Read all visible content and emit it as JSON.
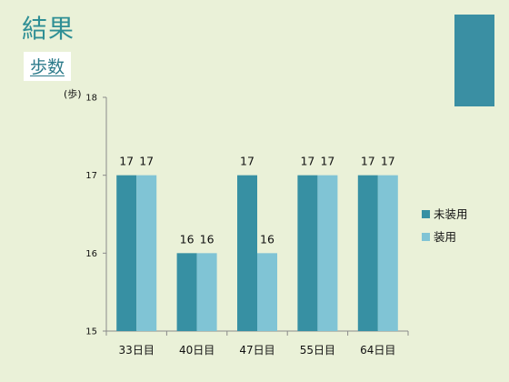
{
  "slide": {
    "title": "結果",
    "subtitle": "歩数"
  },
  "chart_data": {
    "type": "bar",
    "categories": [
      "33日目",
      "40日目",
      "47日目",
      "55日目",
      "64日目"
    ],
    "series": [
      {
        "name": "未装用",
        "values": [
          17,
          16,
          17,
          17,
          17
        ],
        "color": "#3790a3"
      },
      {
        "name": "装用",
        "values": [
          17,
          16,
          16,
          17,
          17
        ],
        "color": "#80c4d5"
      }
    ],
    "ylabel": "(歩)",
    "ylim": [
      15,
      18
    ],
    "yticks": [
      15,
      16,
      17,
      18
    ],
    "grid": false,
    "legend": "right",
    "data_labels": true
  }
}
